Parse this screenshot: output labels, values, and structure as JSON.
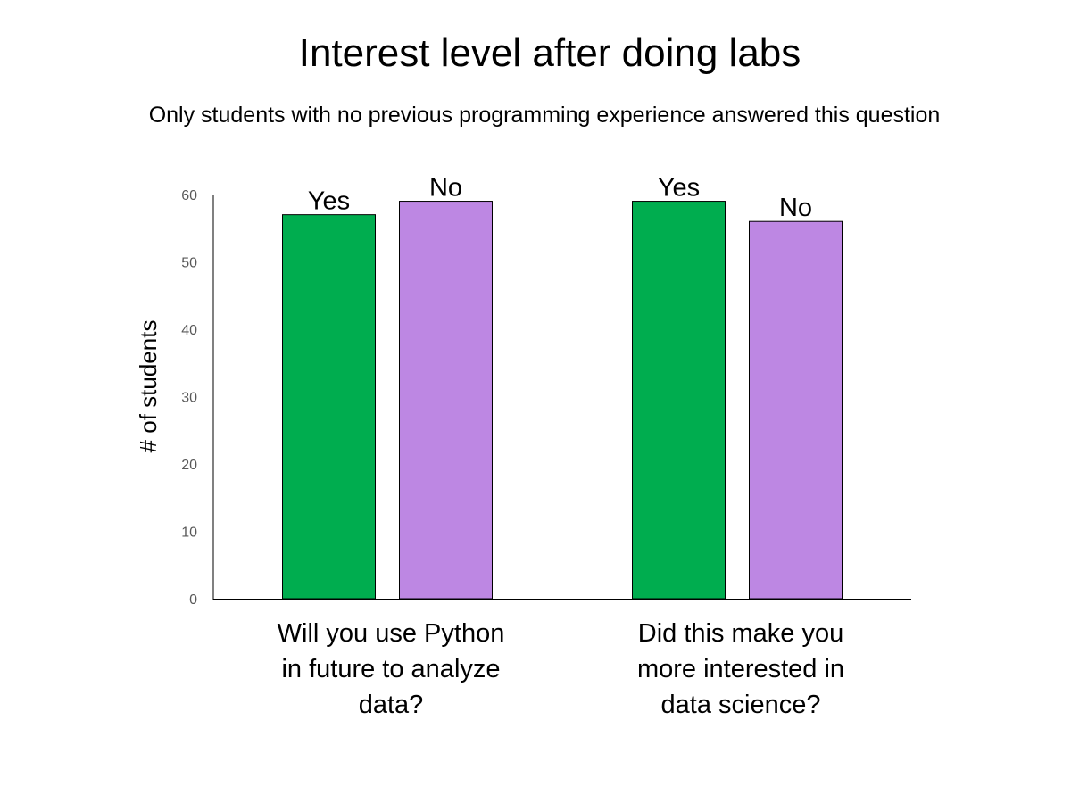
{
  "chart_data": {
    "type": "bar",
    "title": "Interest level after doing labs",
    "subtitle": "Only students with no previous programming experience answered this question",
    "ylabel": "# of students",
    "xlabel": "",
    "ylim": [
      0,
      60
    ],
    "yticks": [
      0,
      10,
      20,
      30,
      40,
      50,
      60
    ],
    "grid": false,
    "legend": "none",
    "groups": [
      {
        "category_lines": [
          "Will you use Python",
          "in future to analyze",
          "data?"
        ],
        "bars": [
          {
            "label": "Yes",
            "value": 57,
            "color": "#00ad4f"
          },
          {
            "label": "No",
            "value": 59,
            "color": "#bd87e3"
          }
        ]
      },
      {
        "category_lines": [
          "Did this make you",
          "more interested in",
          "data science?"
        ],
        "bars": [
          {
            "label": "Yes",
            "value": 59,
            "color": "#00ad4f"
          },
          {
            "label": "No",
            "value": 56,
            "color": "#bd87e3"
          }
        ]
      }
    ]
  }
}
